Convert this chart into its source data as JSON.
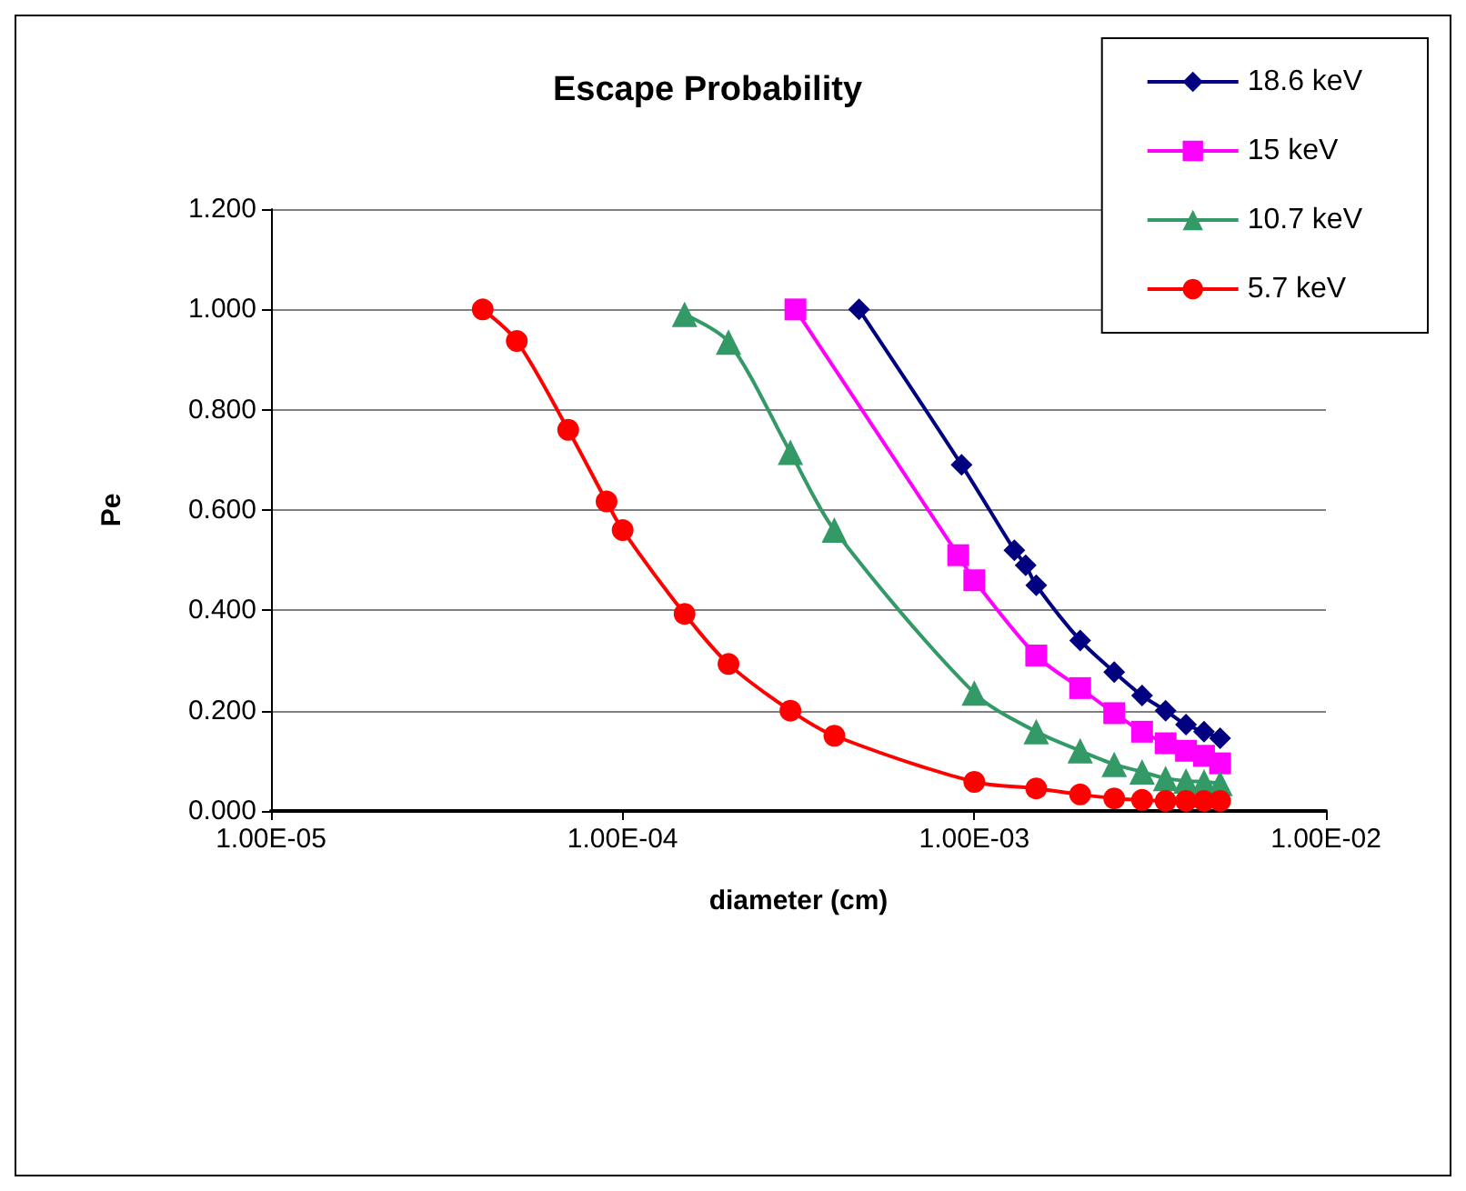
{
  "chart_data": {
    "type": "line",
    "title": "Escape Probability",
    "xlabel": "diameter (cm)",
    "ylabel": "Pe",
    "log": "x",
    "xlim": [
      1e-05,
      0.01
    ],
    "xticks": [
      {
        "value": 1e-05,
        "label": "1.00E-05"
      },
      {
        "value": 0.0001,
        "label": "1.00E-04"
      },
      {
        "value": 0.001,
        "label": "1.00E-03"
      },
      {
        "value": 0.01,
        "label": "1.00E-02"
      }
    ],
    "ylim": [
      0,
      1.2
    ],
    "yticks": [
      {
        "value": 0,
        "label": "0.000"
      },
      {
        "value": 0.2,
        "label": "0.200"
      },
      {
        "value": 0.4,
        "label": "0.400"
      },
      {
        "value": 0.6,
        "label": "0.600"
      },
      {
        "value": 0.8,
        "label": "0.800"
      },
      {
        "value": 1,
        "label": "1.000"
      },
      {
        "value": 1.2,
        "label": "1.200"
      }
    ],
    "grid": "y",
    "legend": "top right",
    "series": [
      {
        "name": "18.6 keV",
        "color": "#000080",
        "marker": "diamond",
        "x": [
          0.00047,
          0.00092,
          0.0013,
          0.0014,
          0.0015,
          0.002,
          0.0025,
          0.003,
          0.0035,
          0.004,
          0.0045,
          0.005
        ],
        "values": [
          1.0,
          0.69,
          0.52,
          0.49,
          0.45,
          0.34,
          0.277,
          0.23,
          0.2,
          0.172,
          0.158,
          0.145
        ]
      },
      {
        "name": "15 keV",
        "color": "#ff00ff",
        "marker": "square",
        "x": [
          0.00031,
          0.0009,
          0.001,
          0.0015,
          0.002,
          0.0025,
          0.003,
          0.0035,
          0.004,
          0.0045,
          0.005
        ],
        "values": [
          1.0,
          0.51,
          0.46,
          0.31,
          0.245,
          0.195,
          0.158,
          0.135,
          0.12,
          0.11,
          0.095
        ]
      },
      {
        "name": "10.7 keV",
        "color": "#339966",
        "marker": "triangle",
        "x": [
          0.00015,
          0.0002,
          0.0003,
          0.0004,
          0.001,
          0.0015,
          0.002,
          0.0025,
          0.003,
          0.0035,
          0.004,
          0.0045,
          0.005
        ],
        "values": [
          0.99,
          0.935,
          0.715,
          0.56,
          0.235,
          0.158,
          0.12,
          0.093,
          0.078,
          0.065,
          0.06,
          0.058,
          0.055
        ]
      },
      {
        "name": "5.7 keV",
        "color": "#ff0000",
        "marker": "circle",
        "x": [
          4e-05,
          5e-05,
          7e-05,
          9e-05,
          0.0001,
          0.00015,
          0.0002,
          0.0003,
          0.0004,
          0.001,
          0.0015,
          0.002,
          0.0025,
          0.003,
          0.0035,
          0.004,
          0.0045,
          0.005
        ],
        "values": [
          1.0,
          0.937,
          0.76,
          0.617,
          0.56,
          0.393,
          0.293,
          0.2,
          0.15,
          0.058,
          0.045,
          0.033,
          0.025,
          0.022,
          0.02,
          0.02,
          0.02,
          0.02
        ]
      }
    ]
  }
}
